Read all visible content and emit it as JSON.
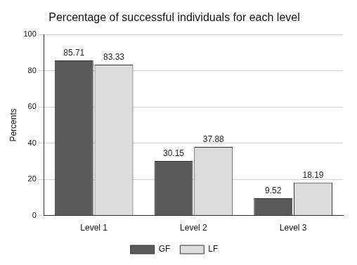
{
  "chart_data": {
    "type": "bar",
    "title": "Percentage of successful individuals for each level",
    "y_label": "Percents",
    "categories": [
      "Level 1",
      "Level 2",
      "Level 3"
    ],
    "series": [
      {
        "name": "GF",
        "color": "#5a5a5a",
        "values": [
          85.71,
          30.15,
          9.52
        ]
      },
      {
        "name": "LF",
        "color": "#dcdcdc",
        "values": [
          83.33,
          37.88,
          18.19
        ]
      }
    ],
    "ylim": [
      0,
      100
    ],
    "yticks": [
      0,
      20,
      40,
      60,
      80,
      100
    ],
    "grid": true,
    "legend": "bottom",
    "data_labels": true
  }
}
